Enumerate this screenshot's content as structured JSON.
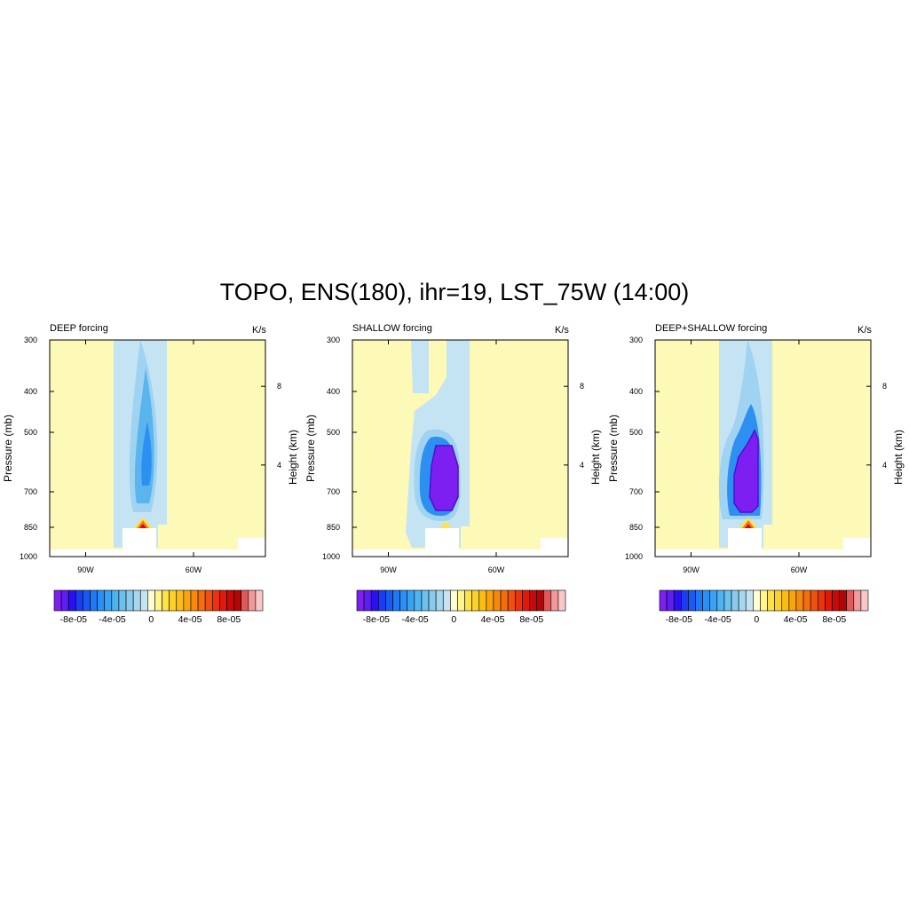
{
  "title": "TOPO, ENS(180), ihr=19, LST_75W (14:00)",
  "colors": {
    "background_field": "#fdf9b7",
    "light_blue": "#c4e4f4",
    "mid_blue": "#9fd3f1",
    "blue": "#5ab4ee",
    "deep_blue": "#2d8ff0",
    "purple": "#7c1ff0",
    "warm_yellow": "#fde24a",
    "warm_orange": "#f57d18",
    "warm_red": "#d70e0e"
  },
  "colorbar_colors": [
    "#7c1ff0",
    "#5e1ef2",
    "#2a10f0",
    "#1b3cf2",
    "#1a5af4",
    "#1f78f5",
    "#2a8ff6",
    "#3aa2f4",
    "#4db3f1",
    "#6cc0ee",
    "#8acbec",
    "#a7d7ee",
    "#c4e4f4",
    "#fffbd2",
    "#fff48d",
    "#fde24a",
    "#fcd12b",
    "#fbbe15",
    "#f9a30d",
    "#f78a0c",
    "#f36e0f",
    "#ef5210",
    "#e8340f",
    "#df1a0d",
    "#c80909",
    "#b10707",
    "#e05a5a",
    "#f29a9a",
    "#f8c8c8"
  ],
  "chart_data": [
    {
      "type": "heatmap",
      "name": "deep",
      "subtitle": "DEEP forcing",
      "units": "K/s",
      "ylabel": "Pressure (mb)",
      "y2label": "Height (km)",
      "xticks": [
        "90W",
        "60W"
      ],
      "xtick_values": [
        -90,
        -60
      ],
      "xlim": [
        -100,
        -40
      ],
      "yticks": [
        "300",
        "400",
        "500",
        "700",
        "850",
        "1000"
      ],
      "ytick_values": [
        300,
        400,
        500,
        700,
        850,
        1000
      ],
      "ylim": [
        300,
        1000
      ],
      "y2ticks": [
        "8",
        "4"
      ],
      "y2tick_values": [
        8,
        4
      ],
      "colorbar_labels": [
        "-8e-05",
        "-4e-05",
        "0",
        "4e-05",
        "8e-05"
      ],
      "colorbar_values": [
        -8e-05,
        -4e-05,
        0,
        4e-05,
        8e-05
      ],
      "colorbar_range": [
        -0.0001,
        0.000115
      ],
      "core_min": -6e-05,
      "surface_max": 8e-05
    },
    {
      "type": "heatmap",
      "name": "shallow",
      "subtitle": "SHALLOW forcing",
      "units": "K/s",
      "ylabel": "Pressure (mb)",
      "y2label": "Height (km)",
      "xticks": [
        "90W",
        "60W"
      ],
      "xtick_values": [
        -90,
        -60
      ],
      "xlim": [
        -100,
        -40
      ],
      "yticks": [
        "300",
        "400",
        "500",
        "700",
        "850",
        "1000"
      ],
      "ytick_values": [
        300,
        400,
        500,
        700,
        850,
        1000
      ],
      "ylim": [
        300,
        1000
      ],
      "y2ticks": [
        "8",
        "4"
      ],
      "y2tick_values": [
        8,
        4
      ],
      "colorbar_labels": [
        "-8e-05",
        "-4e-05",
        "0",
        "4e-05",
        "8e-05"
      ],
      "colorbar_values": [
        -8e-05,
        -4e-05,
        0,
        4e-05,
        8e-05
      ],
      "colorbar_range": [
        -0.0001,
        0.000115
      ],
      "core_min": -0.0001,
      "surface_max": 4e-05
    },
    {
      "type": "heatmap",
      "name": "combined",
      "subtitle": "DEEP+SHALLOW forcing",
      "units": "K/s",
      "ylabel": "Pressure (mb)",
      "y2label": "Height (km)",
      "xticks": [
        "90W",
        "60W"
      ],
      "xtick_values": [
        -90,
        -60
      ],
      "xlim": [
        -100,
        -40
      ],
      "yticks": [
        "300",
        "400",
        "500",
        "700",
        "850",
        "1000"
      ],
      "ytick_values": [
        300,
        400,
        500,
        700,
        850,
        1000
      ],
      "ylim": [
        300,
        1000
      ],
      "y2ticks": [
        "8",
        "4"
      ],
      "y2tick_values": [
        8,
        4
      ],
      "colorbar_labels": [
        "-8e-05",
        "-4e-05",
        "0",
        "4e-05",
        "8e-05"
      ],
      "colorbar_values": [
        -8e-05,
        -4e-05,
        0,
        4e-05,
        8e-05
      ],
      "colorbar_range": [
        -0.0001,
        0.000115
      ],
      "core_min": -0.0001,
      "surface_max": 8e-05
    }
  ]
}
